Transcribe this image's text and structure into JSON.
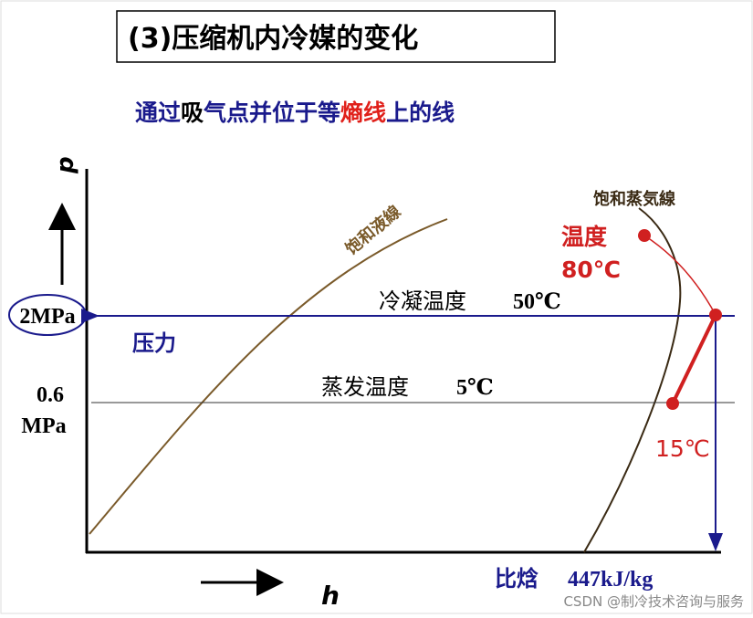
{
  "title": "(3)压缩机内冷媒的变化",
  "subtitle": {
    "parts": [
      "通过",
      "吸",
      "气点并位于等",
      "熵线",
      "上的线"
    ]
  },
  "axes": {
    "y_label": "p",
    "x_label": "h"
  },
  "curves": {
    "liquid_line": "饱和液線",
    "vapor_line": "饱和蒸気線"
  },
  "labels": {
    "discharge_temp": "温度",
    "discharge_temp_value": "80℃",
    "high_pressure": "2MPa",
    "condensing": "冷凝温度",
    "condensing_value": "50℃",
    "pressure": "压力",
    "low_pressure_value": "0.6",
    "low_pressure_unit": "MPa",
    "evaporating": "蒸发温度",
    "evaporating_value": "5℃",
    "suction_temp_value": "15℃",
    "enthalpy": "比焓",
    "enthalpy_value": "447kJ/kg"
  },
  "watermark": "CSDN @制冷技术咨询与服务"
}
